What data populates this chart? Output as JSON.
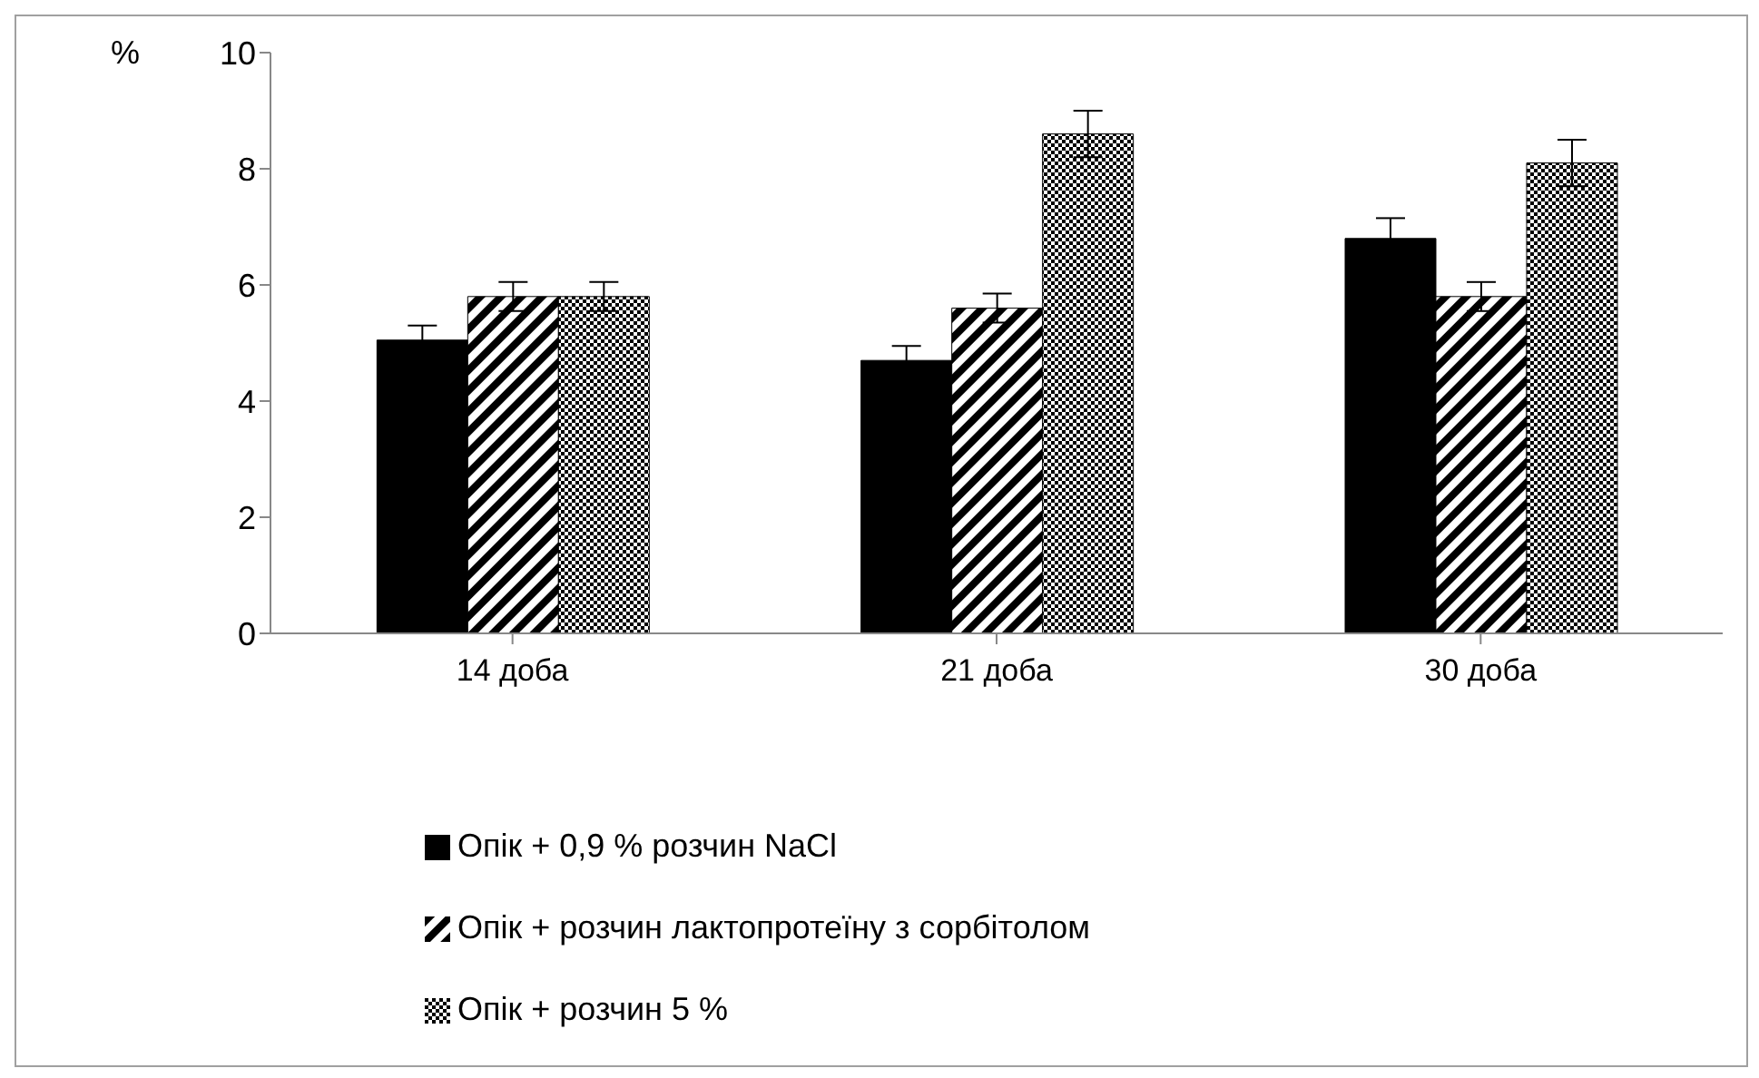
{
  "chart_data": {
    "type": "bar",
    "ylabel": "%",
    "categories": [
      "14 доба",
      "21 доба",
      "30 доба"
    ],
    "series": [
      {
        "name": "Опік + 0,9 % розчин NaCl",
        "color": "#000000",
        "values": [
          5.05,
          4.7,
          6.8
        ],
        "errors": [
          0.25,
          0.25,
          0.35
        ]
      },
      {
        "name": "Опік + розчин лактопротеїну з сорбітолом",
        "color": "#000000",
        "values": [
          5.8,
          5.6,
          5.8
        ],
        "errors": [
          0.25,
          0.25,
          0.25
        ]
      },
      {
        "name": "Опік + розчин 5 %",
        "color": "#000000",
        "values": [
          5.8,
          8.6,
          8.1
        ],
        "errors": [
          0.25,
          0.4,
          0.4
        ]
      }
    ],
    "ylim": [
      0,
      10
    ],
    "yticks": [
      0,
      2,
      4,
      6,
      8,
      10
    ],
    "legend": "bottom"
  }
}
